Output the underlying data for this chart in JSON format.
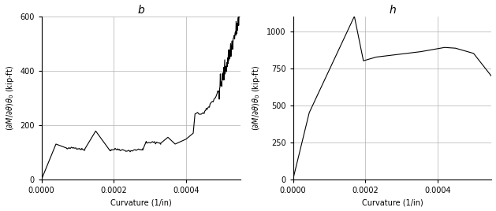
{
  "title_left": "b",
  "title_right": "h",
  "xlabel": "Curvature (1/in)",
  "ylabel_left": "($\\partial M/\\partial\\theta)\\theta_0$ (kip-ft)",
  "ylabel_right": "($\\partial M/\\partial\\theta)\\theta_0$ (kip-ft)",
  "left": {
    "xlim": [
      0.0,
      0.00055
    ],
    "ylim": [
      0,
      600
    ],
    "yticks": [
      0,
      200,
      400,
      600
    ],
    "xticks": [
      0.0,
      0.0002,
      0.0004
    ]
  },
  "right": {
    "xlim": [
      0.0,
      0.00055
    ],
    "ylim": [
      0,
      1100
    ],
    "yticks": [
      0,
      250,
      500,
      750,
      1000
    ],
    "xticks": [
      0.0,
      0.0002,
      0.0004
    ]
  },
  "line_color": "#000000",
  "line_width": 0.8,
  "grid_color": "#b0b0b0",
  "background_color": "#ffffff",
  "title_fontsize": 10,
  "label_fontsize": 7,
  "tick_fontsize": 7
}
